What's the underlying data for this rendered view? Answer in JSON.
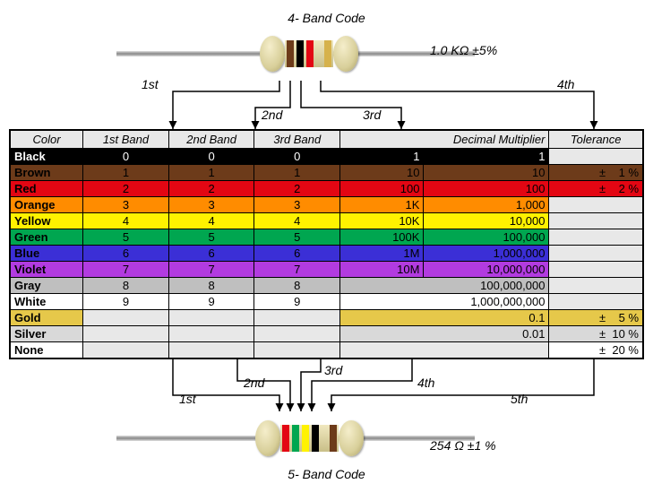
{
  "titles": {
    "top": "4- Band Code",
    "bottom": "5- Band Code"
  },
  "top_resistor": {
    "value": "1.0 KΩ  ±5%",
    "bands": [
      "#6d3b1a",
      "#000000",
      "#e30613",
      "spacer",
      "#d6b24c"
    ]
  },
  "bottom_resistor": {
    "value": "254 Ω  ±1 %",
    "bands": [
      "#e30613",
      "#00a650",
      "#fff200",
      "#000000",
      "spacer",
      "#6d3b1a"
    ]
  },
  "callouts_top": [
    "1st",
    "2nd",
    "3rd",
    "4th"
  ],
  "callouts_bottom": [
    "1st",
    "2nd",
    "3rd",
    "4th",
    "5th"
  ],
  "headers": [
    "Color",
    "1st Band",
    "2nd Band",
    "3rd Band",
    "Decimal Multiplier",
    "Tolerance"
  ],
  "empty_bg": "#e8e8e8",
  "rows": [
    {
      "name": "Black",
      "bg": "#000000",
      "fg": "#ffffff",
      "d": "0",
      "mk": "1",
      "mn": "1",
      "tol": ""
    },
    {
      "name": "Brown",
      "bg": "#6d3b1a",
      "fg": "#000000",
      "d": "1",
      "mk": "10",
      "mn": "10",
      "tol": "±    1 %"
    },
    {
      "name": "Red",
      "bg": "#e30613",
      "fg": "#000000",
      "d": "2",
      "mk": "100",
      "mn": "100",
      "tol": "±    2 %"
    },
    {
      "name": "Orange",
      "bg": "#ff8c00",
      "fg": "#000000",
      "d": "3",
      "mk": "1K",
      "mn": "1,000",
      "tol": ""
    },
    {
      "name": "Yellow",
      "bg": "#fff200",
      "fg": "#000000",
      "d": "4",
      "mk": "10K",
      "mn": "10,000",
      "tol": ""
    },
    {
      "name": "Green",
      "bg": "#00a650",
      "fg": "#000000",
      "d": "5",
      "mk": "100K",
      "mn": "100,000",
      "tol": ""
    },
    {
      "name": "Blue",
      "bg": "#3b2fd6",
      "fg": "#000000",
      "d": "6",
      "mk": "1M",
      "mn": "1,000,000",
      "tol": ""
    },
    {
      "name": "Violet",
      "bg": "#b23be0",
      "fg": "#000000",
      "d": "7",
      "mk": "10M",
      "mn": "10,000,000",
      "tol": ""
    },
    {
      "name": "Gray",
      "bg": "#bfbfbf",
      "fg": "#000000",
      "d": "8",
      "mk": "",
      "mn": "100,000,000",
      "tol": ""
    },
    {
      "name": "White",
      "bg": "#ffffff",
      "fg": "#000000",
      "d": "9",
      "mk": "",
      "mn": "1,000,000,000",
      "tol": ""
    },
    {
      "name": "Gold",
      "bg": "#e6c84a",
      "fg": "#000000",
      "d": "",
      "mk": "",
      "mn": "0.1",
      "tol": "±    5 %"
    },
    {
      "name": "Silver",
      "bg": "#d9d9d9",
      "fg": "#000000",
      "d": "",
      "mk": "",
      "mn": "0.01",
      "tol": "±  10 %"
    },
    {
      "name": "None",
      "bg": "#ffffff",
      "fg": "#000000",
      "d": "",
      "mk": "",
      "mn": "",
      "tol": "±  20 %"
    }
  ]
}
